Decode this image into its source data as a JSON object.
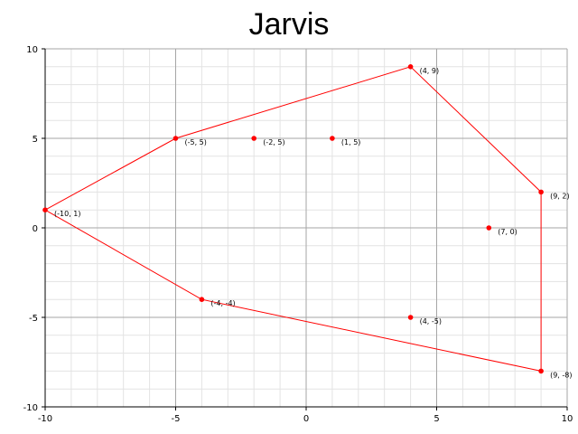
{
  "chart_data": {
    "type": "scatter",
    "title": "Jarvis",
    "xlabel": "",
    "ylabel": "",
    "xlim": [
      -10,
      10
    ],
    "ylim": [
      -10,
      10
    ],
    "x_ticks": [
      -10,
      -5,
      0,
      5,
      10
    ],
    "y_ticks": [
      -10,
      -5,
      0,
      5,
      10
    ],
    "grid": true,
    "points": [
      {
        "x": -10,
        "y": 1,
        "label": "(-10, 1)"
      },
      {
        "x": -5,
        "y": 5,
        "label": "(-5, 5)"
      },
      {
        "x": -2,
        "y": 5,
        "label": "(-2, 5)"
      },
      {
        "x": 1,
        "y": 5,
        "label": "(1, 5)"
      },
      {
        "x": 4,
        "y": 9,
        "label": "(4, 9)"
      },
      {
        "x": 9,
        "y": 2,
        "label": "(9, 2)"
      },
      {
        "x": 7,
        "y": 0,
        "label": "(7, 0)"
      },
      {
        "x": -4,
        "y": -4,
        "label": "(-4, -4)"
      },
      {
        "x": 4,
        "y": -5,
        "label": "(4, -5)"
      },
      {
        "x": 9,
        "y": -8,
        "label": "(9, -8)"
      }
    ],
    "hull": [
      {
        "x": -10,
        "y": 1
      },
      {
        "x": -5,
        "y": 5
      },
      {
        "x": 4,
        "y": 9
      },
      {
        "x": 9,
        "y": 2
      },
      {
        "x": 9,
        "y": -8
      },
      {
        "x": -4,
        "y": -4
      },
      {
        "x": -10,
        "y": 1
      }
    ],
    "colors": {
      "hull_line": "#ff0000",
      "point": "#ff0000",
      "major_grid": "#a6a6a6",
      "minor_grid": "#e3e3e3",
      "axis": "#000000"
    }
  }
}
